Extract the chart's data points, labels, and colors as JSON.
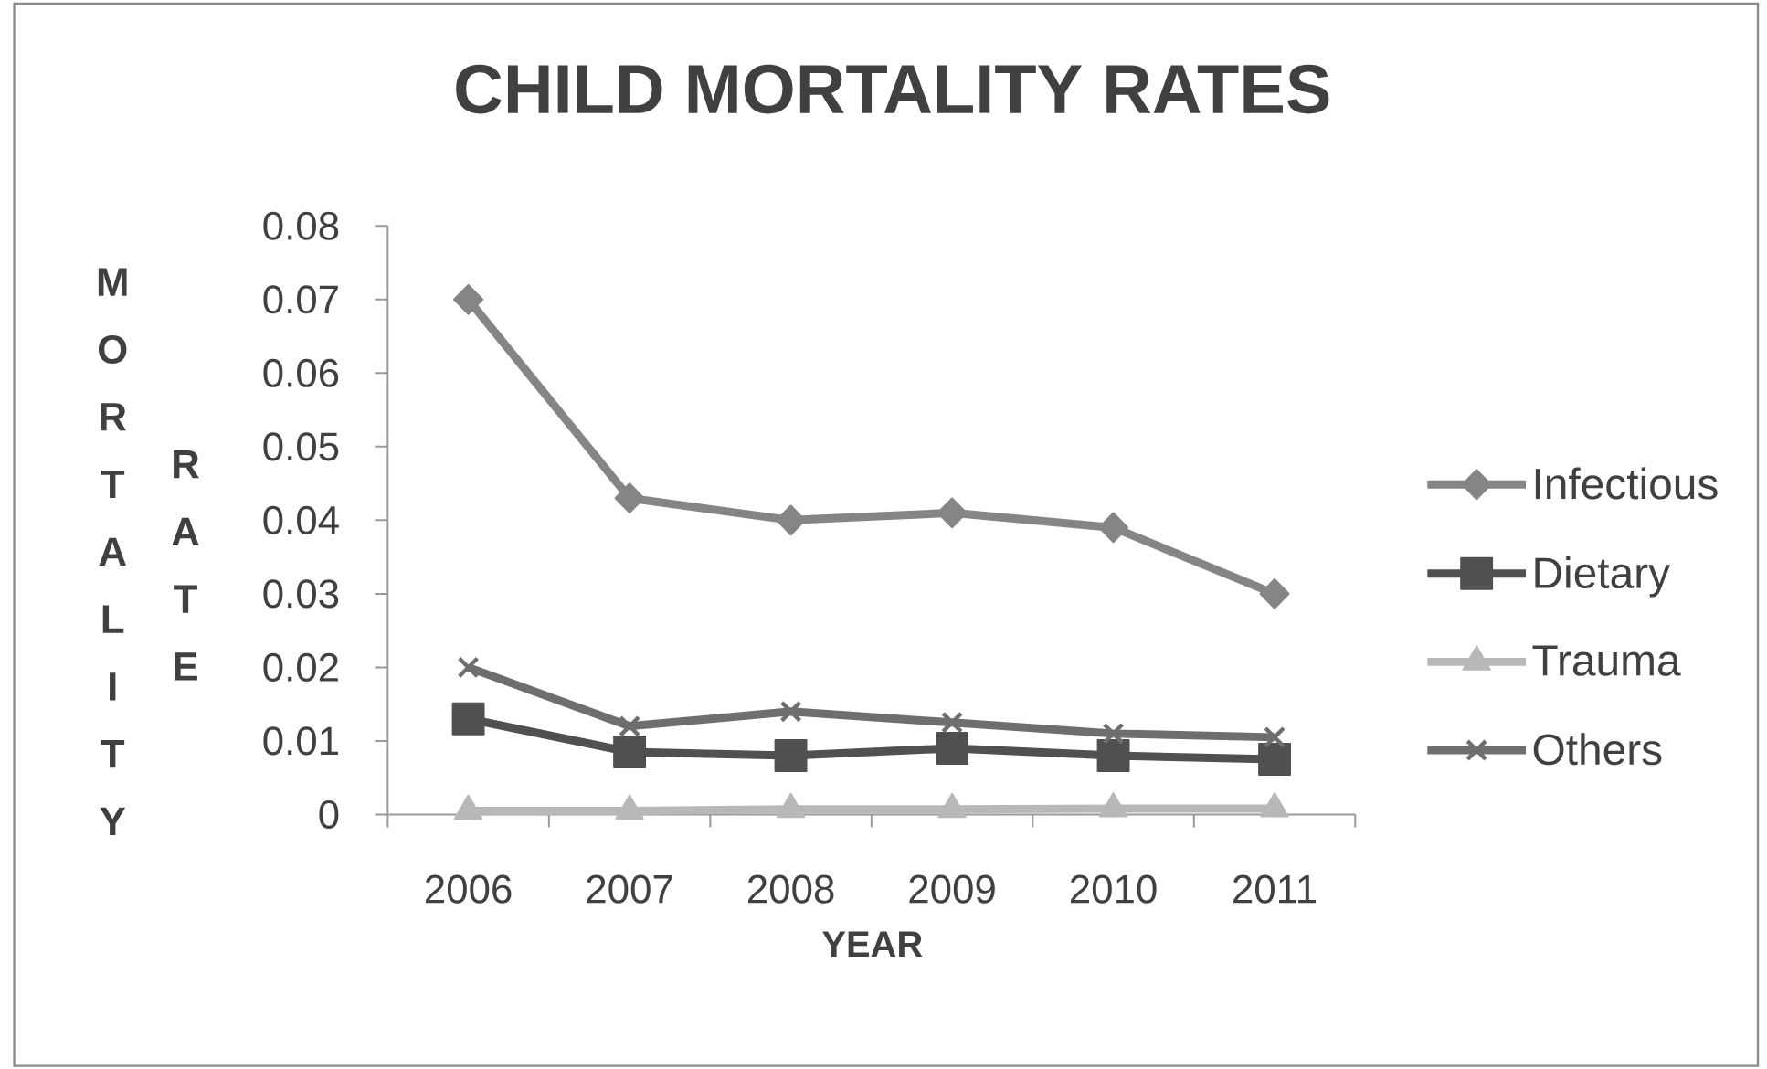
{
  "chart_data": {
    "type": "line",
    "title": "CHILD MORTALITY RATES",
    "xlabel": "YEAR",
    "ylabel": "MORTALITY RATE",
    "categories": [
      "2006",
      "2007",
      "2008",
      "2009",
      "2010",
      "2011"
    ],
    "series": [
      {
        "name": "Infectious",
        "color": "#858585",
        "marker": "diamond",
        "values": [
          0.07,
          0.043,
          0.04,
          0.041,
          0.039,
          0.03
        ]
      },
      {
        "name": "Dietary",
        "color": "#505050",
        "marker": "square",
        "values": [
          0.013,
          0.0085,
          0.008,
          0.009,
          0.008,
          0.0075
        ]
      },
      {
        "name": "Trauma",
        "color": "#b8b8b8",
        "marker": "triangle",
        "values": [
          0.0005,
          0.0005,
          0.0007,
          0.0007,
          0.0008,
          0.0008
        ]
      },
      {
        "name": "Others",
        "color": "#6e6e6e",
        "marker": "cross",
        "values": [
          0.02,
          0.012,
          0.014,
          0.0125,
          0.011,
          0.0105
        ]
      }
    ],
    "ylim": [
      0,
      0.08
    ],
    "yticks": [
      0,
      0.01,
      0.02,
      0.03,
      0.04,
      0.05,
      0.06,
      0.07,
      0.08
    ],
    "legend": "right"
  }
}
